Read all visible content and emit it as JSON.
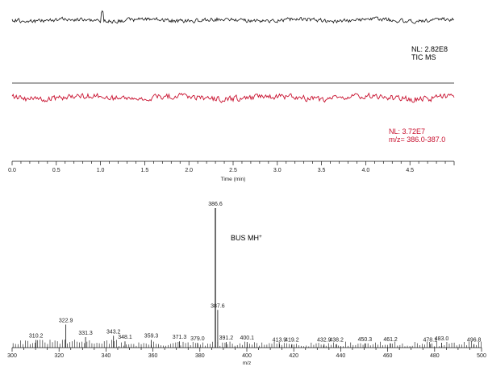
{
  "chart_data": [
    {
      "type": "line",
      "panel": "chromatogram",
      "xlabel": "Time (min)",
      "xlim": [
        0,
        5.0
      ],
      "x_ticks": [
        "0.0",
        "0.5",
        "1.0",
        "1.5",
        "2.0",
        "2.5",
        "3.0",
        "3.5",
        "4.0",
        "4.5"
      ],
      "series": [
        {
          "trace": "tic",
          "color": "#111111",
          "annotation": [
            "NL: 2.82E8",
            "TIC  MS"
          ],
          "profile": "noisy baseline with a single spike near 1.02 min"
        },
        {
          "trace": "sim",
          "color": "#c8102e",
          "annotation": [
            "NL: 3.72E7",
            "m/z= 386.0-387.0"
          ],
          "profile": "noisy baseline, no distinct peak"
        }
      ],
      "grid": false
    },
    {
      "type": "bar",
      "panel": "mass-spectrum",
      "xlabel": "m/z",
      "xlim": [
        300,
        500
      ],
      "x_ticks": [
        "300",
        "320",
        "340",
        "360",
        "380",
        "400",
        "420",
        "440",
        "460",
        "480",
        "500"
      ],
      "annotation": "BUS MH⁺",
      "annotation_base": "BUS MH",
      "annotation_sup": "+",
      "peaks": [
        {
          "mz": 310.2,
          "rel": 5.5,
          "label": "310.2"
        },
        {
          "mz": 322.9,
          "rel": 16.5,
          "label": "322.9"
        },
        {
          "mz": 331.3,
          "rel": 7.5,
          "label": "331.3"
        },
        {
          "mz": 343.2,
          "rel": 8.5,
          "label": "343.2"
        },
        {
          "mz": 348.1,
          "rel": 4.5,
          "label": "348.1"
        },
        {
          "mz": 359.3,
          "rel": 5.5,
          "label": "359.3"
        },
        {
          "mz": 371.3,
          "rel": 4.5,
          "label": "371.3"
        },
        {
          "mz": 379.0,
          "rel": 3.5,
          "label": "379.0"
        },
        {
          "mz": 386.6,
          "rel": 100,
          "label": "386.6"
        },
        {
          "mz": 387.6,
          "rel": 27,
          "label": "387.6"
        },
        {
          "mz": 391.2,
          "rel": 4,
          "label": "391.2"
        },
        {
          "mz": 400.1,
          "rel": 4,
          "label": "400.1"
        },
        {
          "mz": 413.9,
          "rel": 2.5,
          "label": "413.9"
        },
        {
          "mz": 419.2,
          "rel": 2.5,
          "label": "419.2"
        },
        {
          "mz": 432.9,
          "rel": 2.5,
          "label": "432.9"
        },
        {
          "mz": 438.2,
          "rel": 2.5,
          "label": "438.2"
        },
        {
          "mz": 450.3,
          "rel": 3,
          "label": "450.3"
        },
        {
          "mz": 461.2,
          "rel": 3,
          "label": "461.2"
        },
        {
          "mz": 478.1,
          "rel": 2.5,
          "label": "478.1"
        },
        {
          "mz": 483.0,
          "rel": 3.5,
          "label": "483.0"
        },
        {
          "mz": 496.8,
          "rel": 2.5,
          "label": "496.8"
        }
      ]
    }
  ]
}
